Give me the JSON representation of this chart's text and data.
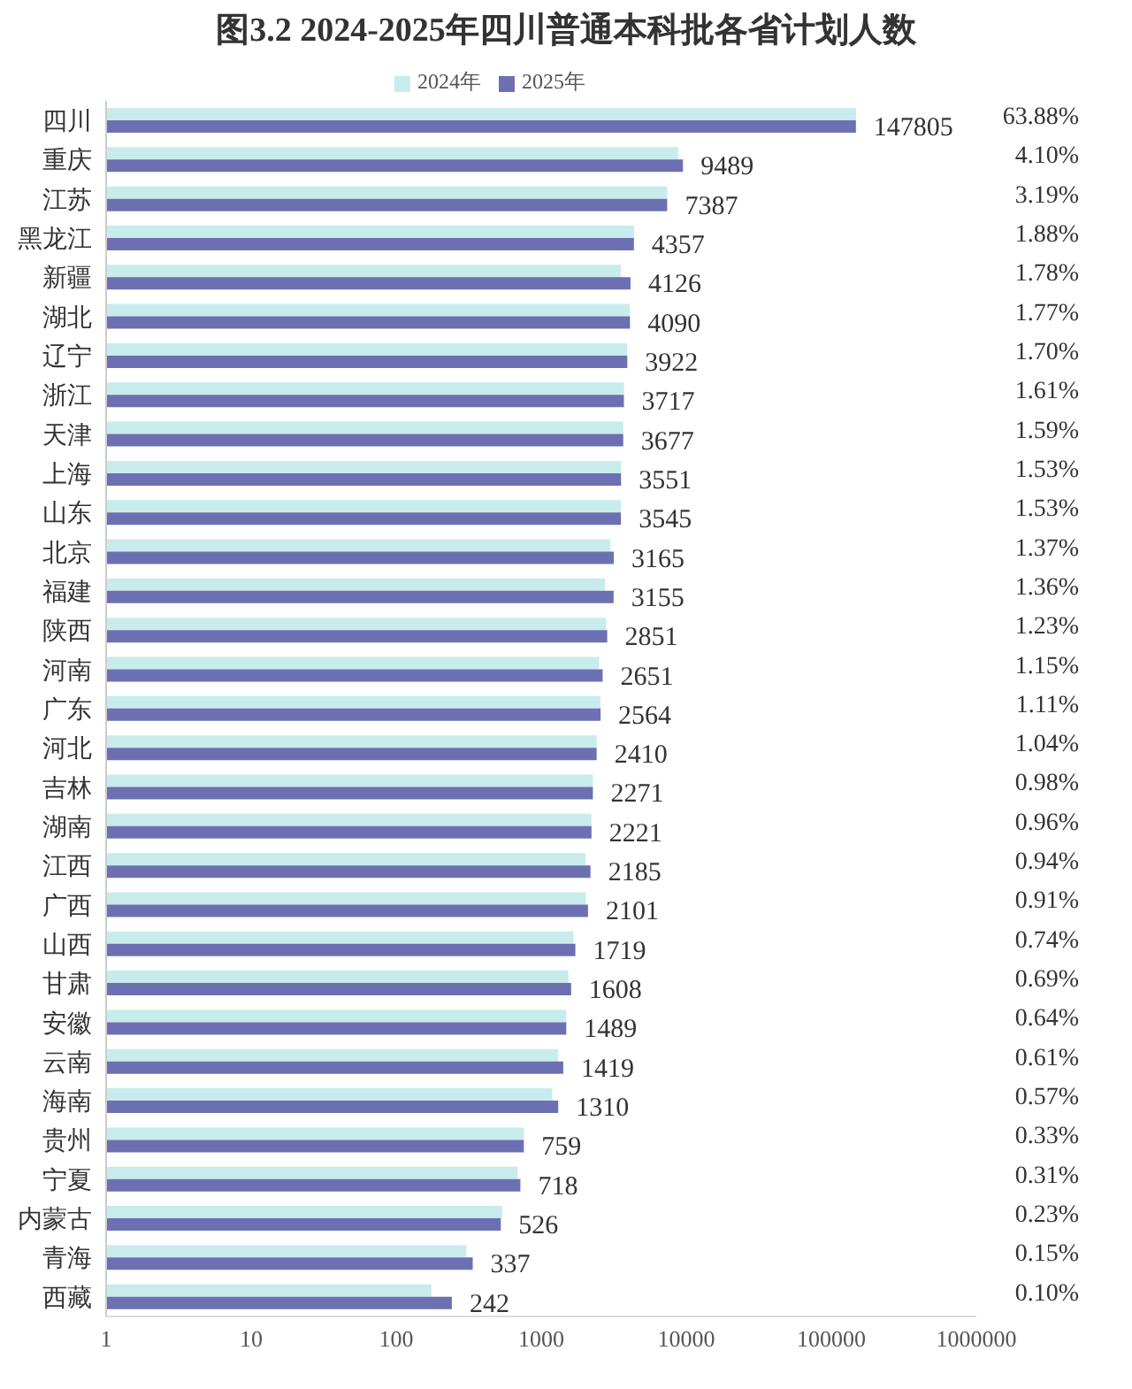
{
  "chart_data": {
    "type": "bar",
    "orientation": "horizontal",
    "title": "图3.2  2024-2025年四川普通本科批各省计划人数",
    "categories": [
      "四川",
      "重庆",
      "江苏",
      "黑龙江",
      "新疆",
      "湖北",
      "辽宁",
      "浙江",
      "天津",
      "上海",
      "山东",
      "北京",
      "福建",
      "陕西",
      "河南",
      "广东",
      "河北",
      "吉林",
      "湖南",
      "江西",
      "广西",
      "山西",
      "甘肃",
      "安徽",
      "云南",
      "海南",
      "贵州",
      "宁夏",
      "内蒙古",
      "青海",
      "西藏"
    ],
    "series": [
      {
        "name": "2024年",
        "color": "#c8ecec",
        "values": [
          148000,
          8800,
          7400,
          4360,
          3540,
          4090,
          3900,
          3720,
          3680,
          3550,
          3550,
          3000,
          2760,
          2800,
          2510,
          2560,
          2410,
          2270,
          2220,
          2020,
          2030,
          1670,
          1540,
          1490,
          1310,
          1190,
          760,
          690,
          540,
          305,
          175
        ]
      },
      {
        "name": "2025年",
        "color": "#6c70b2",
        "values": [
          147805,
          9489,
          7387,
          4357,
          4126,
          4090,
          3922,
          3717,
          3677,
          3551,
          3545,
          3165,
          3155,
          2851,
          2651,
          2564,
          2410,
          2271,
          2221,
          2185,
          2101,
          1719,
          1608,
          1489,
          1419,
          1310,
          759,
          718,
          526,
          337,
          242
        ],
        "value_labels": [
          "147805",
          "9489",
          "7387",
          "4357",
          "4126",
          "4090",
          "3922",
          "3717",
          "3677",
          "3551",
          "3545",
          "3165",
          "3155",
          "2851",
          "2651",
          "2564",
          "2410",
          "2271",
          "2221",
          "2185",
          "2101",
          "1719",
          "1608",
          "1489",
          "1419",
          "1310",
          "759",
          "718",
          "526",
          "337",
          "242"
        ]
      }
    ],
    "log": "x",
    "xlim": [
      1,
      1000000
    ],
    "xticks": [
      1,
      10,
      100,
      1000,
      10000,
      100000,
      1000000
    ],
    "grid": false,
    "legend": "top",
    "annotations": [
      "63.88%",
      "4.10%",
      "3.19%",
      "1.88%",
      "1.78%",
      "1.77%",
      "1.70%",
      "1.61%",
      "1.59%",
      "1.53%",
      "1.53%",
      "1.37%",
      "1.36%",
      "1.23%",
      "1.15%",
      "1.11%",
      "1.04%",
      "0.98%",
      "0.96%",
      "0.94%",
      "0.91%",
      "0.74%",
      "0.69%",
      "0.64%",
      "0.61%",
      "0.57%",
      "0.33%",
      "0.31%",
      "0.23%",
      "0.15%",
      "0.10%"
    ]
  }
}
